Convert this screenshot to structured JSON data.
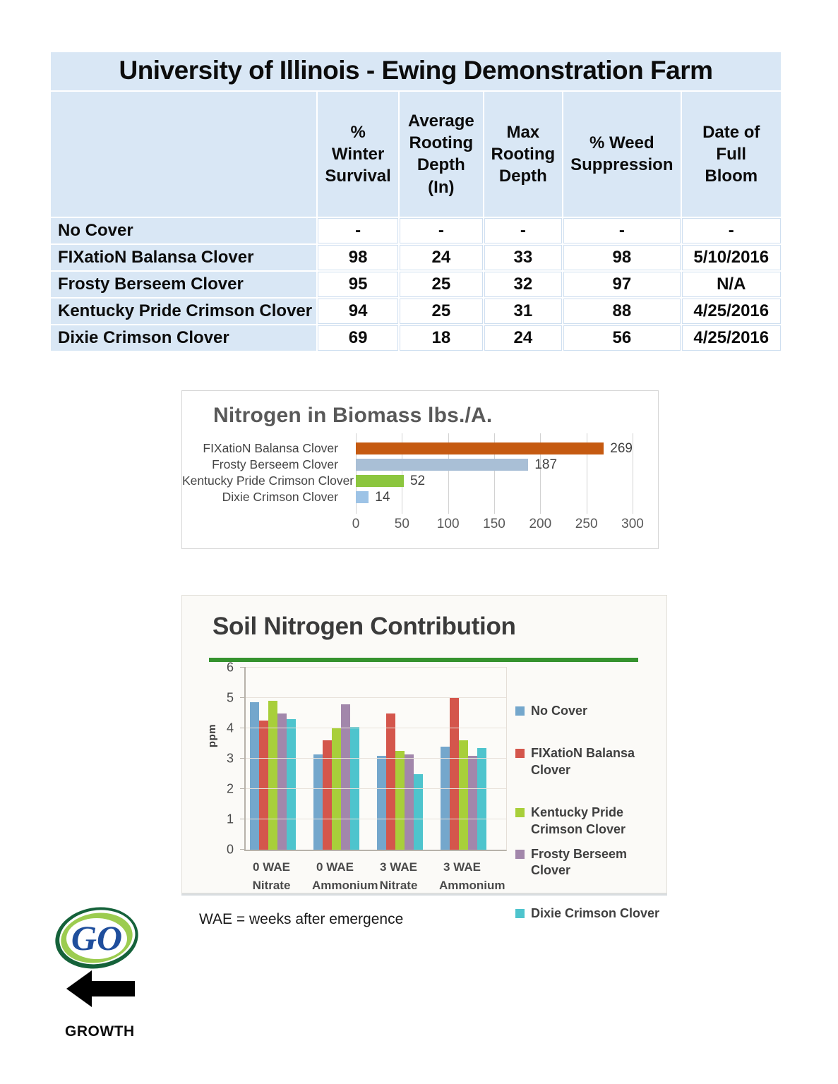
{
  "table": {
    "title": "University of Illinois - Ewing Demonstration Farm",
    "columns": [
      "% Winter Survival",
      "Average Rooting Depth (In)",
      "Max Rooting Depth",
      "% Weed Suppression",
      "Date of Full Bloom"
    ],
    "rows": [
      {
        "label": "No Cover",
        "values": [
          "-",
          "-",
          "-",
          "-",
          "-"
        ]
      },
      {
        "label": "FIXatioN Balansa Clover",
        "values": [
          "98",
          "24",
          "33",
          "98",
          "5/10/2016"
        ]
      },
      {
        "label": "Frosty Berseem Clover",
        "values": [
          "95",
          "25",
          "32",
          "97",
          "N/A"
        ]
      },
      {
        "label": "Kentucky Pride Crimson Clover",
        "values": [
          "94",
          "25",
          "31",
          "88",
          "4/25/2016"
        ]
      },
      {
        "label": "Dixie Crimson Clover",
        "values": [
          "69",
          "18",
          "24",
          "56",
          "4/25/2016"
        ]
      }
    ],
    "accent_color": "#d9e7f5"
  },
  "chart_data": [
    {
      "type": "bar",
      "orientation": "horizontal",
      "title": "Nitrogen in Biomass lbs./A.",
      "categories": [
        "FIXatioN Balansa Clover",
        "Frosty Berseem Clover",
        "Kentucky Pride Crimson Clover",
        "Dixie Crimson Clover"
      ],
      "values": [
        269,
        187,
        52,
        14
      ],
      "bar_colors": [
        "#c55a11",
        "#a9bfd6",
        "#8cc63f",
        "#9dc3e6"
      ],
      "xlabel": "",
      "ylabel": "",
      "xlim": [
        0,
        300
      ],
      "x_ticks": [
        0,
        50,
        100,
        150,
        200,
        250,
        300
      ],
      "grid": true,
      "legend_position": "none",
      "title_color": "#595959"
    },
    {
      "type": "bar",
      "orientation": "vertical",
      "title": "Soil Nitrogen Contribution",
      "xlabel": "",
      "ylabel": "ppm",
      "ylim": [
        0,
        6
      ],
      "y_ticks": [
        0,
        1,
        2,
        3,
        4,
        5,
        6
      ],
      "categories": [
        "0 WAE Nitrate",
        "0 WAE Ammonium",
        "3 WAE Nitrate",
        "3 WAE Ammonium"
      ],
      "series": [
        {
          "name": "No Cover",
          "color": "#74a7cc",
          "values": [
            4.85,
            3.15,
            3.1,
            3.4
          ]
        },
        {
          "name": "FIXatioN Balansa Clover",
          "color": "#d4564c",
          "values": [
            4.25,
            3.6,
            4.5,
            5.0
          ]
        },
        {
          "name": "Kentucky Pride Crimson Clover",
          "color": "#a8cf3a",
          "values": [
            4.9,
            4.0,
            3.25,
            3.6
          ]
        },
        {
          "name": "Frosty Berseem Clover",
          "color": "#a287ab",
          "values": [
            4.5,
            4.8,
            3.15,
            3.1
          ]
        },
        {
          "name": "Dixie Crimson Clover",
          "color": "#4ec4cd",
          "values": [
            4.3,
            4.05,
            2.5,
            3.35
          ]
        }
      ],
      "grid": true,
      "legend_position": "right",
      "accent_rule_color": "#35922e",
      "title_color": "#3b3b3b"
    }
  ],
  "footer": {
    "note": "WAE = weeks after emergence",
    "logo_text": "GO",
    "growth_label": "GROWTH",
    "logo_colors": {
      "outer_ring": "#15623a",
      "inner_ring": "#9ccc50",
      "text": "#1f4e9c"
    }
  }
}
